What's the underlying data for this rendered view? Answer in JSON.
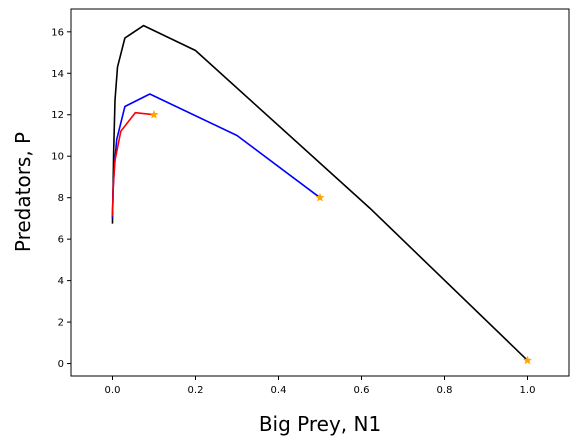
{
  "chart_data": {
    "type": "line",
    "title": "",
    "xlabel": "Big Prey, N1",
    "ylabel": "Predators, P",
    "xlim": [
      -0.1,
      1.1
    ],
    "ylim": [
      -0.6,
      17.1
    ],
    "xticks": [
      "0.0",
      "0.2",
      "0.4",
      "0.6",
      "0.8",
      "1.0"
    ],
    "yticks": [
      "0",
      "2",
      "4",
      "6",
      "8",
      "10",
      "12",
      "14",
      "16"
    ],
    "grid": false,
    "legend": "none",
    "series": [
      {
        "color": "#000000",
        "x": [
          1.0,
          0.62,
          0.2,
          0.075,
          0.03,
          0.012,
          0.006,
          0.003,
          0.001,
          0.0,
          0.0
        ],
        "y": [
          0.15,
          7.5,
          15.1,
          16.3,
          15.7,
          14.3,
          12.7,
          10.3,
          8.0,
          7.0,
          6.75
        ]
      },
      {
        "color": "#0000ff",
        "x": [
          0.5,
          0.3,
          0.09,
          0.03,
          0.01,
          0.004,
          0.001,
          0.0
        ],
        "y": [
          8.0,
          11.0,
          13.0,
          12.4,
          10.8,
          9.4,
          8.1,
          7.0
        ]
      },
      {
        "color": "#ff0000",
        "x": [
          0.1,
          0.055,
          0.02,
          0.006,
          0.002,
          0.0
        ],
        "y": [
          12.0,
          12.1,
          11.2,
          9.8,
          8.6,
          7.1
        ]
      }
    ],
    "markers": {
      "symbol": "star",
      "color": "#ffa500",
      "points": [
        {
          "x": 1.0,
          "y": 0.15
        },
        {
          "x": 0.5,
          "y": 8.0
        },
        {
          "x": 0.1,
          "y": 12.0
        }
      ]
    }
  }
}
